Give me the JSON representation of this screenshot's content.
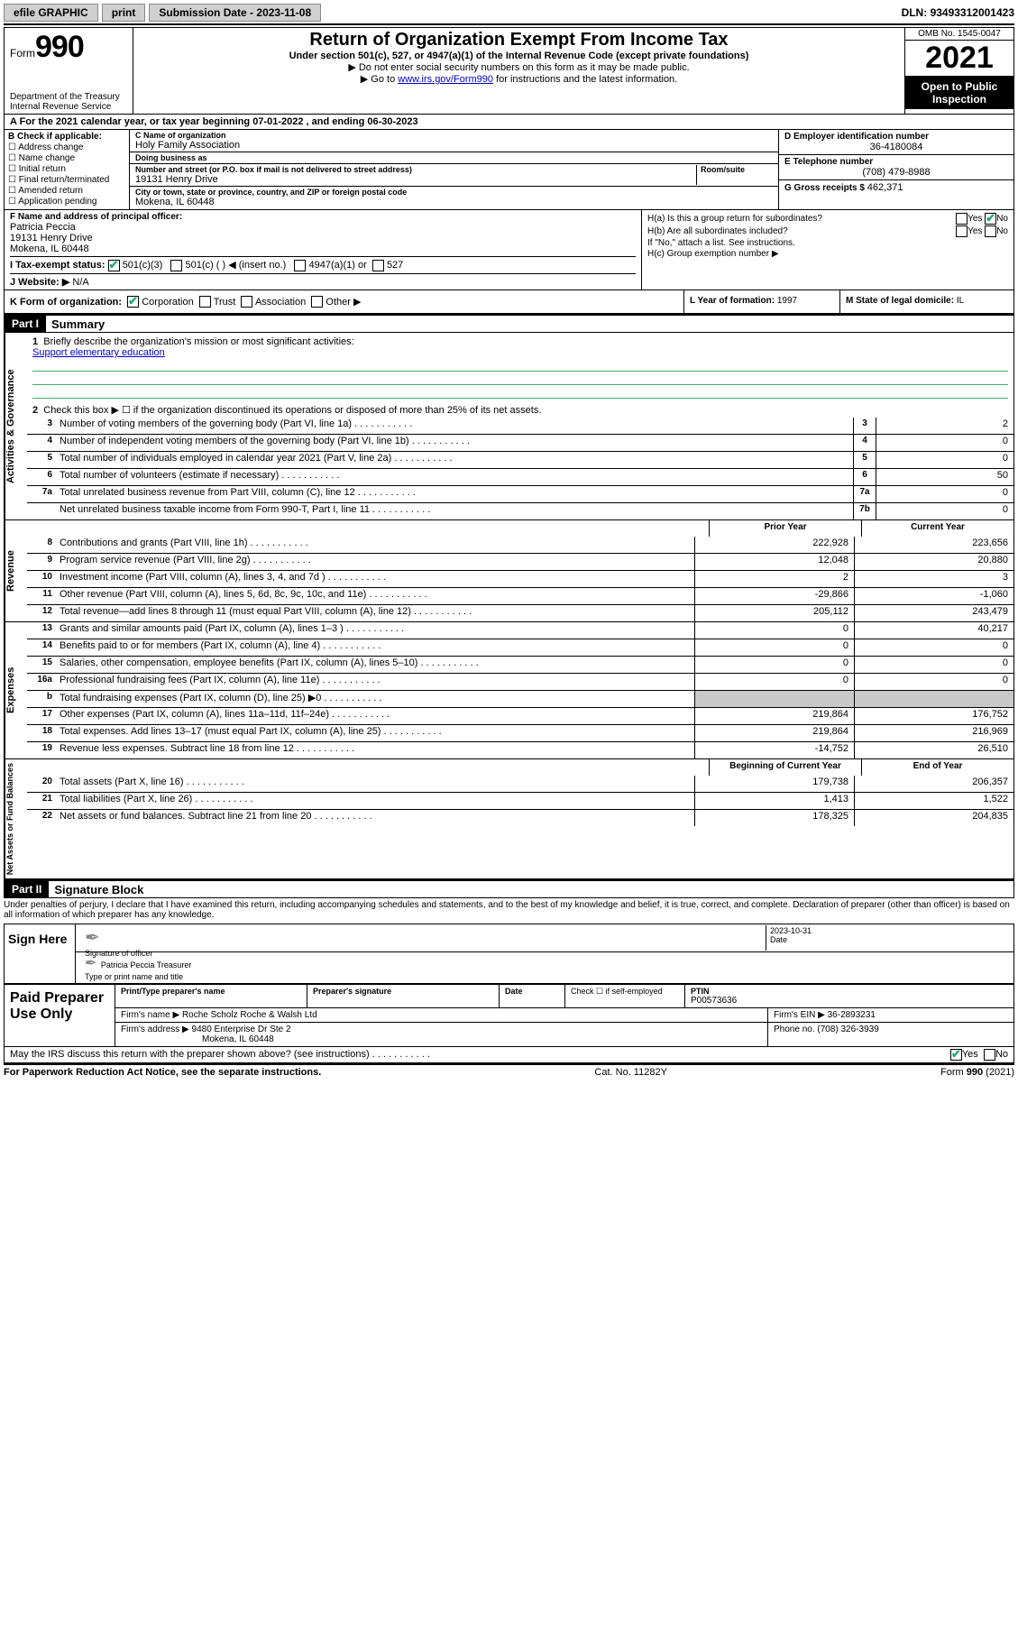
{
  "topbar": {
    "efile": "efile GRAPHIC",
    "print": "print",
    "submission_label": "Submission Date - ",
    "submission_date": "2023-11-08",
    "dln_label": "DLN: ",
    "dln": "93493312001423"
  },
  "header": {
    "form_word": "Form",
    "form_num": "990",
    "dept": "Department of the Treasury",
    "irs": "Internal Revenue Service",
    "title": "Return of Organization Exempt From Income Tax",
    "sub": "Under section 501(c), 527, or 4947(a)(1) of the Internal Revenue Code (except private foundations)",
    "note1": "▶ Do not enter social security numbers on this form as it may be made public.",
    "note2_pre": "▶ Go to ",
    "note2_link": "www.irs.gov/Form990",
    "note2_post": " for instructions and the latest information.",
    "omb": "OMB No. 1545-0047",
    "year": "2021",
    "open": "Open to Public Inspection"
  },
  "row_a": "A For the 2021 calendar year, or tax year beginning 07-01-2022  , and ending 06-30-2023",
  "b": {
    "label": "B Check if applicable:",
    "opts": [
      "Address change",
      "Name change",
      "Initial return",
      "Final return/terminated",
      "Amended return",
      "Application pending"
    ]
  },
  "c": {
    "name_label": "C Name of organization",
    "name": "Holy Family Association",
    "dba_label": "Doing business as",
    "dba": "",
    "street_label": "Number and street (or P.O. box if mail is not delivered to street address)",
    "street": "19131 Henry Drive",
    "suite_label": "Room/suite",
    "city_label": "City or town, state or province, country, and ZIP or foreign postal code",
    "city": "Mokena, IL  60448"
  },
  "d": {
    "label": "D Employer identification number",
    "value": "36-4180084"
  },
  "e": {
    "label": "E Telephone number",
    "value": "(708) 479-8988"
  },
  "g": {
    "label": "G Gross receipts $ ",
    "value": "462,371"
  },
  "f": {
    "label": "F Name and address of principal officer:",
    "name": "Patricia Peccia",
    "street": "19131 Henry Drive",
    "city": "Mokena, IL  60448"
  },
  "h": {
    "a_label": "H(a)  Is this a group return for subordinates?",
    "b_label": "H(b)  Are all subordinates included?",
    "b_note": "If \"No,\" attach a list. See instructions.",
    "c_label": "H(c)  Group exemption number ▶",
    "yes": "Yes",
    "no": "No"
  },
  "i": {
    "label": "I  Tax-exempt status:",
    "o1": "501(c)(3)",
    "o2": "501(c) (  ) ◀ (insert no.)",
    "o3": "4947(a)(1) or",
    "o4": "527"
  },
  "j": {
    "label": "J  Website: ▶ ",
    "value": "N/A"
  },
  "k": {
    "label": "K Form of organization:",
    "o1": "Corporation",
    "o2": "Trust",
    "o3": "Association",
    "o4": "Other ▶"
  },
  "l": {
    "label": "L Year of formation: ",
    "value": "1997"
  },
  "m": {
    "label": "M State of legal domicile: ",
    "value": "IL"
  },
  "part1": {
    "header": "Part I",
    "title": "Summary"
  },
  "summary": {
    "q1": "Briefly describe the organization's mission or most significant activities:",
    "mission": "Support elementary education",
    "q2": "Check this box ▶ ☐  if the organization discontinued its operations or disposed of more than 25% of its net assets.",
    "rows_gov": [
      {
        "n": "3",
        "t": "Number of voting members of the governing body (Part VI, line 1a)",
        "box": "3",
        "v": "2"
      },
      {
        "n": "4",
        "t": "Number of independent voting members of the governing body (Part VI, line 1b)",
        "box": "4",
        "v": "0"
      },
      {
        "n": "5",
        "t": "Total number of individuals employed in calendar year 2021 (Part V, line 2a)",
        "box": "5",
        "v": "0"
      },
      {
        "n": "6",
        "t": "Total number of volunteers (estimate if necessary)",
        "box": "6",
        "v": "50"
      },
      {
        "n": "7a",
        "t": "Total unrelated business revenue from Part VIII, column (C), line 12",
        "box": "7a",
        "v": "0"
      },
      {
        "n": "",
        "t": "Net unrelated business taxable income from Form 990-T, Part I, line 11",
        "box": "7b",
        "v": "0"
      }
    ],
    "col_prior": "Prior Year",
    "col_current": "Current Year",
    "rows_rev": [
      {
        "n": "8",
        "t": "Contributions and grants (Part VIII, line 1h)",
        "p": "222,928",
        "c": "223,656"
      },
      {
        "n": "9",
        "t": "Program service revenue (Part VIII, line 2g)",
        "p": "12,048",
        "c": "20,880"
      },
      {
        "n": "10",
        "t": "Investment income (Part VIII, column (A), lines 3, 4, and 7d )",
        "p": "2",
        "c": "3"
      },
      {
        "n": "11",
        "t": "Other revenue (Part VIII, column (A), lines 5, 6d, 8c, 9c, 10c, and 11e)",
        "p": "-29,866",
        "c": "-1,060"
      },
      {
        "n": "12",
        "t": "Total revenue—add lines 8 through 11 (must equal Part VIII, column (A), line 12)",
        "p": "205,112",
        "c": "243,479"
      }
    ],
    "rows_exp": [
      {
        "n": "13",
        "t": "Grants and similar amounts paid (Part IX, column (A), lines 1–3 )",
        "p": "0",
        "c": "40,217"
      },
      {
        "n": "14",
        "t": "Benefits paid to or for members (Part IX, column (A), line 4)",
        "p": "0",
        "c": "0"
      },
      {
        "n": "15",
        "t": "Salaries, other compensation, employee benefits (Part IX, column (A), lines 5–10)",
        "p": "0",
        "c": "0"
      },
      {
        "n": "16a",
        "t": "Professional fundraising fees (Part IX, column (A), line 11e)",
        "p": "0",
        "c": "0"
      },
      {
        "n": "b",
        "t": "Total fundraising expenses (Part IX, column (D), line 25) ▶0",
        "p": "",
        "c": "",
        "gray": true
      },
      {
        "n": "17",
        "t": "Other expenses (Part IX, column (A), lines 11a–11d, 11f–24e)",
        "p": "219,864",
        "c": "176,752"
      },
      {
        "n": "18",
        "t": "Total expenses. Add lines 13–17 (must equal Part IX, column (A), line 25)",
        "p": "219,864",
        "c": "216,969"
      },
      {
        "n": "19",
        "t": "Revenue less expenses. Subtract line 18 from line 12",
        "p": "-14,752",
        "c": "26,510"
      }
    ],
    "col_begin": "Beginning of Current Year",
    "col_end": "End of Year",
    "rows_net": [
      {
        "n": "20",
        "t": "Total assets (Part X, line 16)",
        "p": "179,738",
        "c": "206,357"
      },
      {
        "n": "21",
        "t": "Total liabilities (Part X, line 26)",
        "p": "1,413",
        "c": "1,522"
      },
      {
        "n": "22",
        "t": "Net assets or fund balances. Subtract line 21 from line 20",
        "p": "178,325",
        "c": "204,835"
      }
    ],
    "side_gov": "Activities & Governance",
    "side_rev": "Revenue",
    "side_exp": "Expenses",
    "side_net": "Net Assets or Fund Balances"
  },
  "part2": {
    "header": "Part II",
    "title": "Signature Block"
  },
  "sig": {
    "perjury": "Under penalties of perjury, I declare that I have examined this return, including accompanying schedules and statements, and to the best of my knowledge and belief, it is true, correct, and complete. Declaration of preparer (other than officer) is based on all information of which preparer has any knowledge.",
    "sign_here": "Sign Here",
    "sig_officer": "Signature of officer",
    "date": "2023-10-31",
    "date_lbl": "Date",
    "name_title": "Patricia Peccia  Treasurer",
    "name_title_lbl": "Type or print name and title"
  },
  "paid": {
    "title": "Paid Preparer Use Only",
    "h1": "Print/Type preparer's name",
    "h2": "Preparer's signature",
    "h3": "Date",
    "h4_pre": "Check ☐ if self-employed",
    "h5": "PTIN",
    "ptin": "P00573636",
    "firm_lbl": "Firm's name   ▶ ",
    "firm": "Roche Scholz Roche & Walsh Ltd",
    "ein_lbl": "Firm's EIN ▶ ",
    "ein": "36-2893231",
    "addr_lbl": "Firm's address ▶ ",
    "addr1": "9480 Enterprise Dr Ste 2",
    "addr2": "Mokena, IL  60448",
    "phone_lbl": "Phone no. ",
    "phone": "(708) 326-3939"
  },
  "discuss": {
    "q": "May the IRS discuss this return with the preparer shown above? (see instructions)",
    "yes": "Yes",
    "no": "No"
  },
  "footer": {
    "left": "For Paperwork Reduction Act Notice, see the separate instructions.",
    "mid": "Cat. No. 11282Y",
    "right": "Form 990 (2021)"
  }
}
